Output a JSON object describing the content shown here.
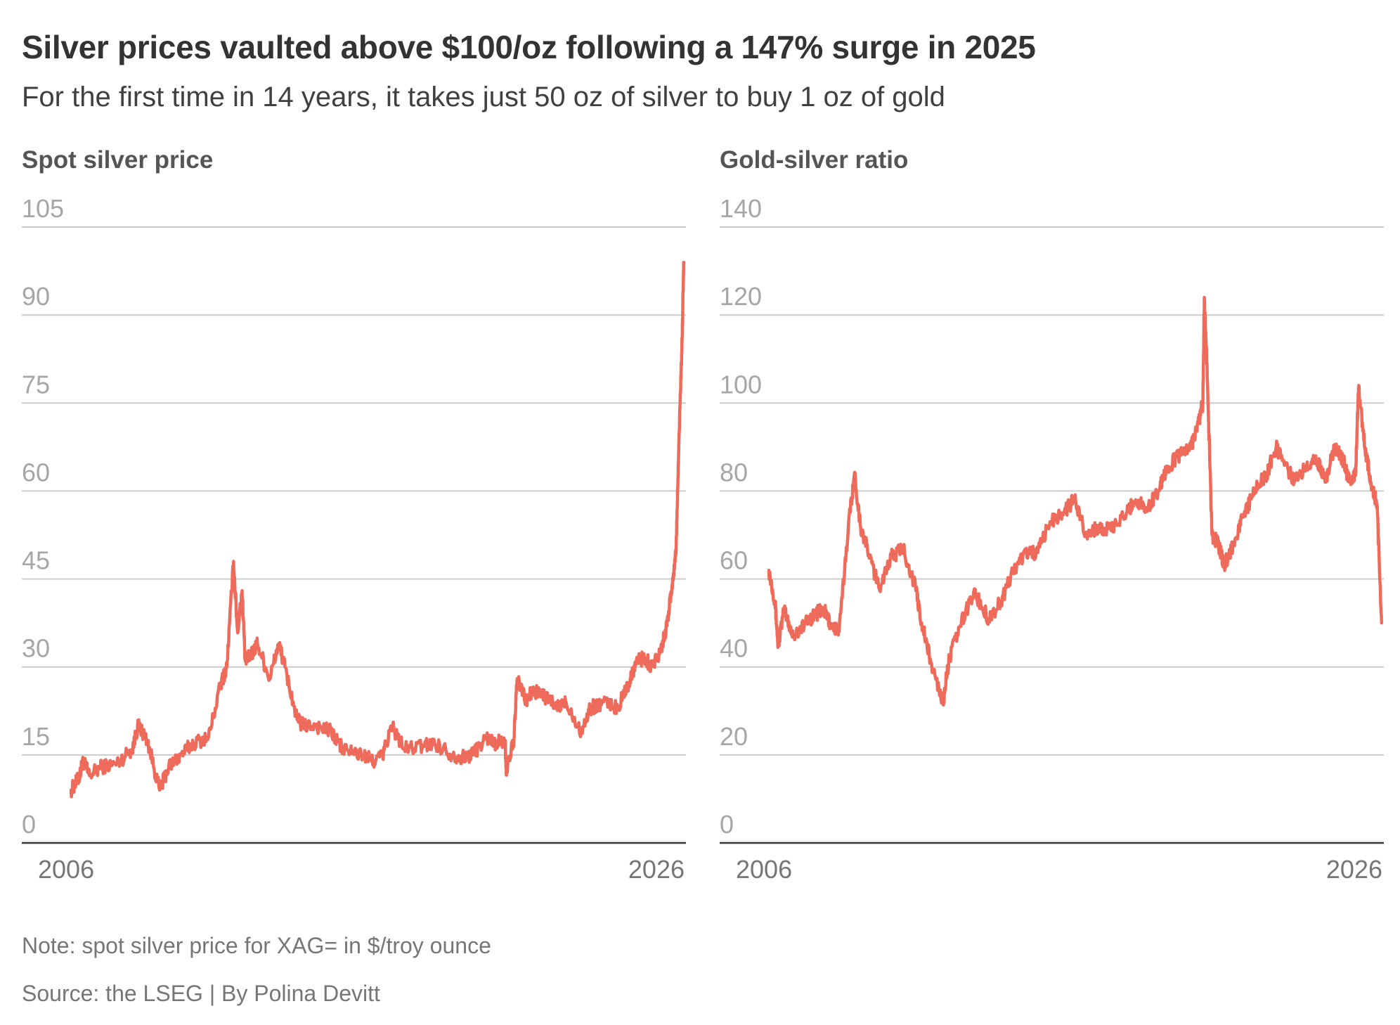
{
  "title": "Silver prices vaulted above $100/oz following a 147% surge in 2025",
  "subtitle": "For the first time in 14 years, it takes just 50 oz of silver to buy 1 oz of gold",
  "note": "Note: spot silver price for XAG= in $/troy ounce",
  "source": "Source: the LSEG | By Polina Devitt",
  "colors": {
    "series": "#ee6a5a",
    "grid": "#cccccc",
    "axis": "#333333"
  },
  "chart_data": [
    {
      "type": "line",
      "title": "Spot silver price",
      "xlabel": "",
      "ylabel": "",
      "xlim": [
        2006,
        2026.1
      ],
      "ylim": [
        0,
        105
      ],
      "yticks": [
        0,
        15,
        30,
        45,
        60,
        75,
        90,
        105
      ],
      "xtick_labels": [
        "2006",
        "2026"
      ],
      "grid": true,
      "series": [
        {
          "color": "#ee6a5a",
          "x": [
            2006.0,
            2006.25,
            2006.4,
            2006.6,
            2007.0,
            2007.5,
            2008.0,
            2008.2,
            2008.5,
            2008.9,
            2009.2,
            2009.6,
            2010.0,
            2010.5,
            2010.9,
            2011.1,
            2011.32,
            2011.45,
            2011.6,
            2011.7,
            2011.9,
            2012.1,
            2012.5,
            2012.8,
            2013.0,
            2013.4,
            2013.6,
            2014.0,
            2014.5,
            2014.9,
            2015.5,
            2015.9,
            2016.2,
            2016.5,
            2016.9,
            2017.5,
            2017.9,
            2018.5,
            2018.9,
            2019.2,
            2019.6,
            2019.9,
            2020.2,
            2020.25,
            2020.5,
            2020.6,
            2020.9,
            2021.1,
            2021.5,
            2021.9,
            2022.2,
            2022.7,
            2023.0,
            2023.4,
            2023.9,
            2024.3,
            2024.5,
            2024.8,
            2025.0,
            2025.3,
            2025.5,
            2025.7,
            2025.8,
            2025.9,
            2026.0,
            2026.05
          ],
          "values": [
            9,
            11,
            14,
            11.5,
            13,
            13.5,
            16,
            20,
            17.5,
            9,
            13,
            15,
            17,
            18,
            27,
            30,
            48,
            36,
            43,
            31,
            32,
            34,
            28,
            34,
            30,
            21,
            20,
            20,
            19,
            16,
            15,
            14,
            15,
            20,
            16,
            16.5,
            17,
            15,
            14.5,
            15.5,
            18,
            17,
            17.5,
            12,
            18,
            28,
            24,
            26,
            25,
            23,
            24,
            19,
            23,
            24,
            23,
            28,
            31,
            31.5,
            30,
            33,
            37,
            45,
            50,
            70,
            86,
            99
          ]
        }
      ]
    },
    {
      "type": "line",
      "title": "Gold-silver ratio",
      "xlabel": "",
      "ylabel": "",
      "xlim": [
        2006,
        2026.1
      ],
      "ylim": [
        0,
        140
      ],
      "yticks": [
        0,
        20,
        40,
        60,
        80,
        100,
        120,
        140
      ],
      "xtick_labels": [
        "2006",
        "2026"
      ],
      "grid": true,
      "series": [
        {
          "color": "#ee6a5a",
          "x": [
            2006.0,
            2006.2,
            2006.3,
            2006.5,
            2006.8,
            2007.2,
            2007.5,
            2007.8,
            2008.0,
            2008.3,
            2008.6,
            2008.8,
            2009.0,
            2009.3,
            2009.6,
            2010.0,
            2010.4,
            2010.8,
            2011.0,
            2011.3,
            2011.7,
            2011.9,
            2012.3,
            2012.7,
            2013.2,
            2013.6,
            2014.0,
            2014.4,
            2014.8,
            2015.2,
            2015.6,
            2016.0,
            2016.4,
            2016.8,
            2017.2,
            2017.7,
            2018.0,
            2018.4,
            2018.8,
            2019.0,
            2019.4,
            2019.8,
            2020.0,
            2020.2,
            2020.25,
            2020.35,
            2020.5,
            2020.7,
            2020.9,
            2021.2,
            2021.5,
            2021.9,
            2022.3,
            2022.6,
            2022.9,
            2023.2,
            2023.6,
            2023.9,
            2024.2,
            2024.5,
            2024.8,
            2025.0,
            2025.2,
            2025.3,
            2025.5,
            2025.7,
            2025.9,
            2026.05
          ],
          "values": [
            62,
            55,
            45,
            53,
            47,
            50,
            52,
            53,
            50,
            48,
            72,
            84,
            72,
            65,
            58,
            65,
            67,
            58,
            50,
            41,
            32,
            42,
            50,
            57,
            51,
            55,
            62,
            66,
            66,
            73,
            75,
            78,
            70,
            72,
            71,
            75,
            78,
            76,
            81,
            85,
            88,
            90,
            94,
            100,
            124,
            105,
            70,
            68,
            63,
            68,
            74,
            80,
            84,
            90,
            86,
            82,
            86,
            88,
            82,
            90,
            87,
            82,
            84,
            104,
            90,
            82,
            77,
            50
          ]
        }
      ]
    }
  ]
}
